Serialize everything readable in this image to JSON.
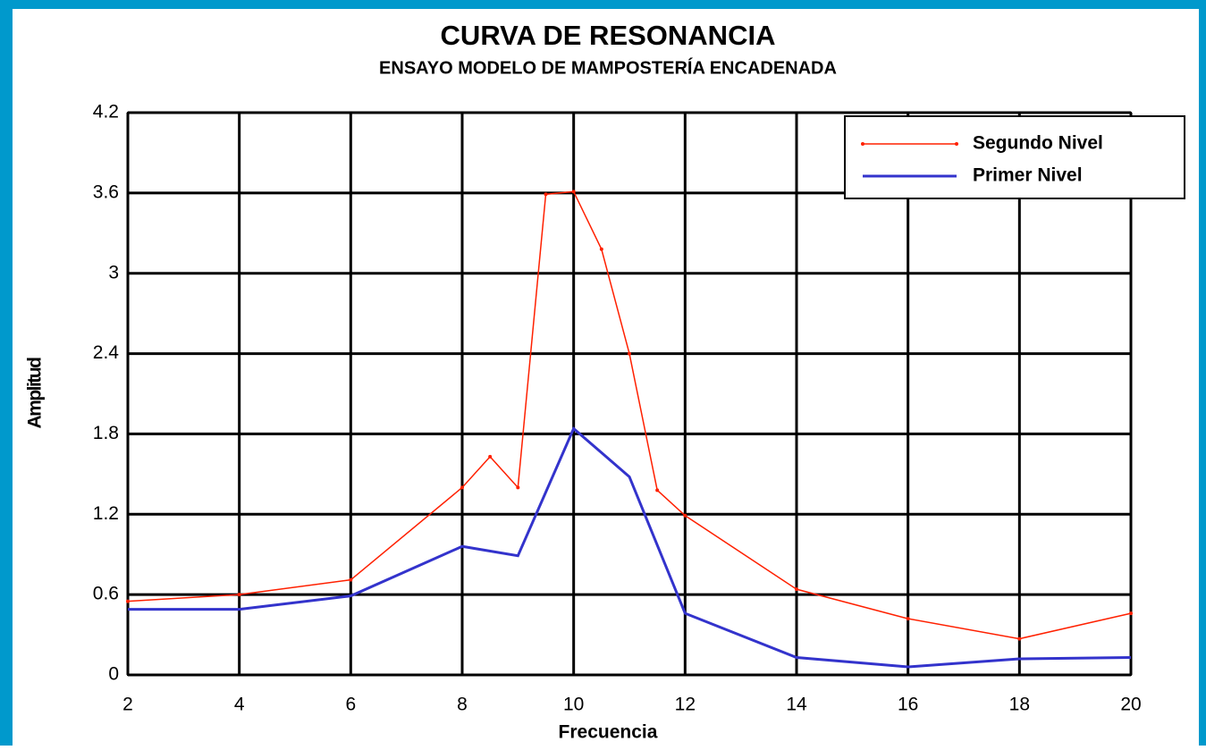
{
  "chart_data": {
    "type": "line",
    "title": "CURVA DE RESONANCIA",
    "subtitle": "ENSAYO MODELO DE MAMPOSTERÍA ENCADENADA",
    "x_label": "Frecuencia",
    "y_label": "Amplitud",
    "xlim": [
      2,
      20
    ],
    "xticks": [
      2,
      4,
      6,
      8,
      10,
      12,
      14,
      16,
      18,
      20
    ],
    "ylim": [
      0,
      4.2
    ],
    "yticks": [
      0,
      0.6,
      1.2,
      1.8,
      2.4,
      3,
      3.6,
      4.2
    ],
    "grid": true,
    "legend": "upper right",
    "series": [
      {
        "name": "Segundo Nivel",
        "color": "#ff2000",
        "markers": true,
        "x": [
          2,
          4,
          6,
          8,
          8.5,
          9,
          9.5,
          10,
          10.5,
          11,
          11.5,
          12,
          14,
          16,
          18,
          20
        ],
        "values": [
          0.55,
          0.6,
          0.71,
          1.4,
          1.63,
          1.4,
          3.59,
          3.61,
          3.18,
          2.4,
          1.38,
          1.19,
          0.64,
          0.42,
          0.27,
          0.46
        ]
      },
      {
        "name": "Primer Nivel",
        "color": "#3333cc",
        "markers": false,
        "x": [
          2,
          4,
          6,
          8,
          9,
          10,
          11,
          12,
          14,
          16,
          18,
          20
        ],
        "values": [
          0.49,
          0.49,
          0.59,
          0.96,
          0.89,
          1.84,
          1.48,
          0.46,
          0.13,
          0.06,
          0.12,
          0.13
        ]
      }
    ]
  }
}
